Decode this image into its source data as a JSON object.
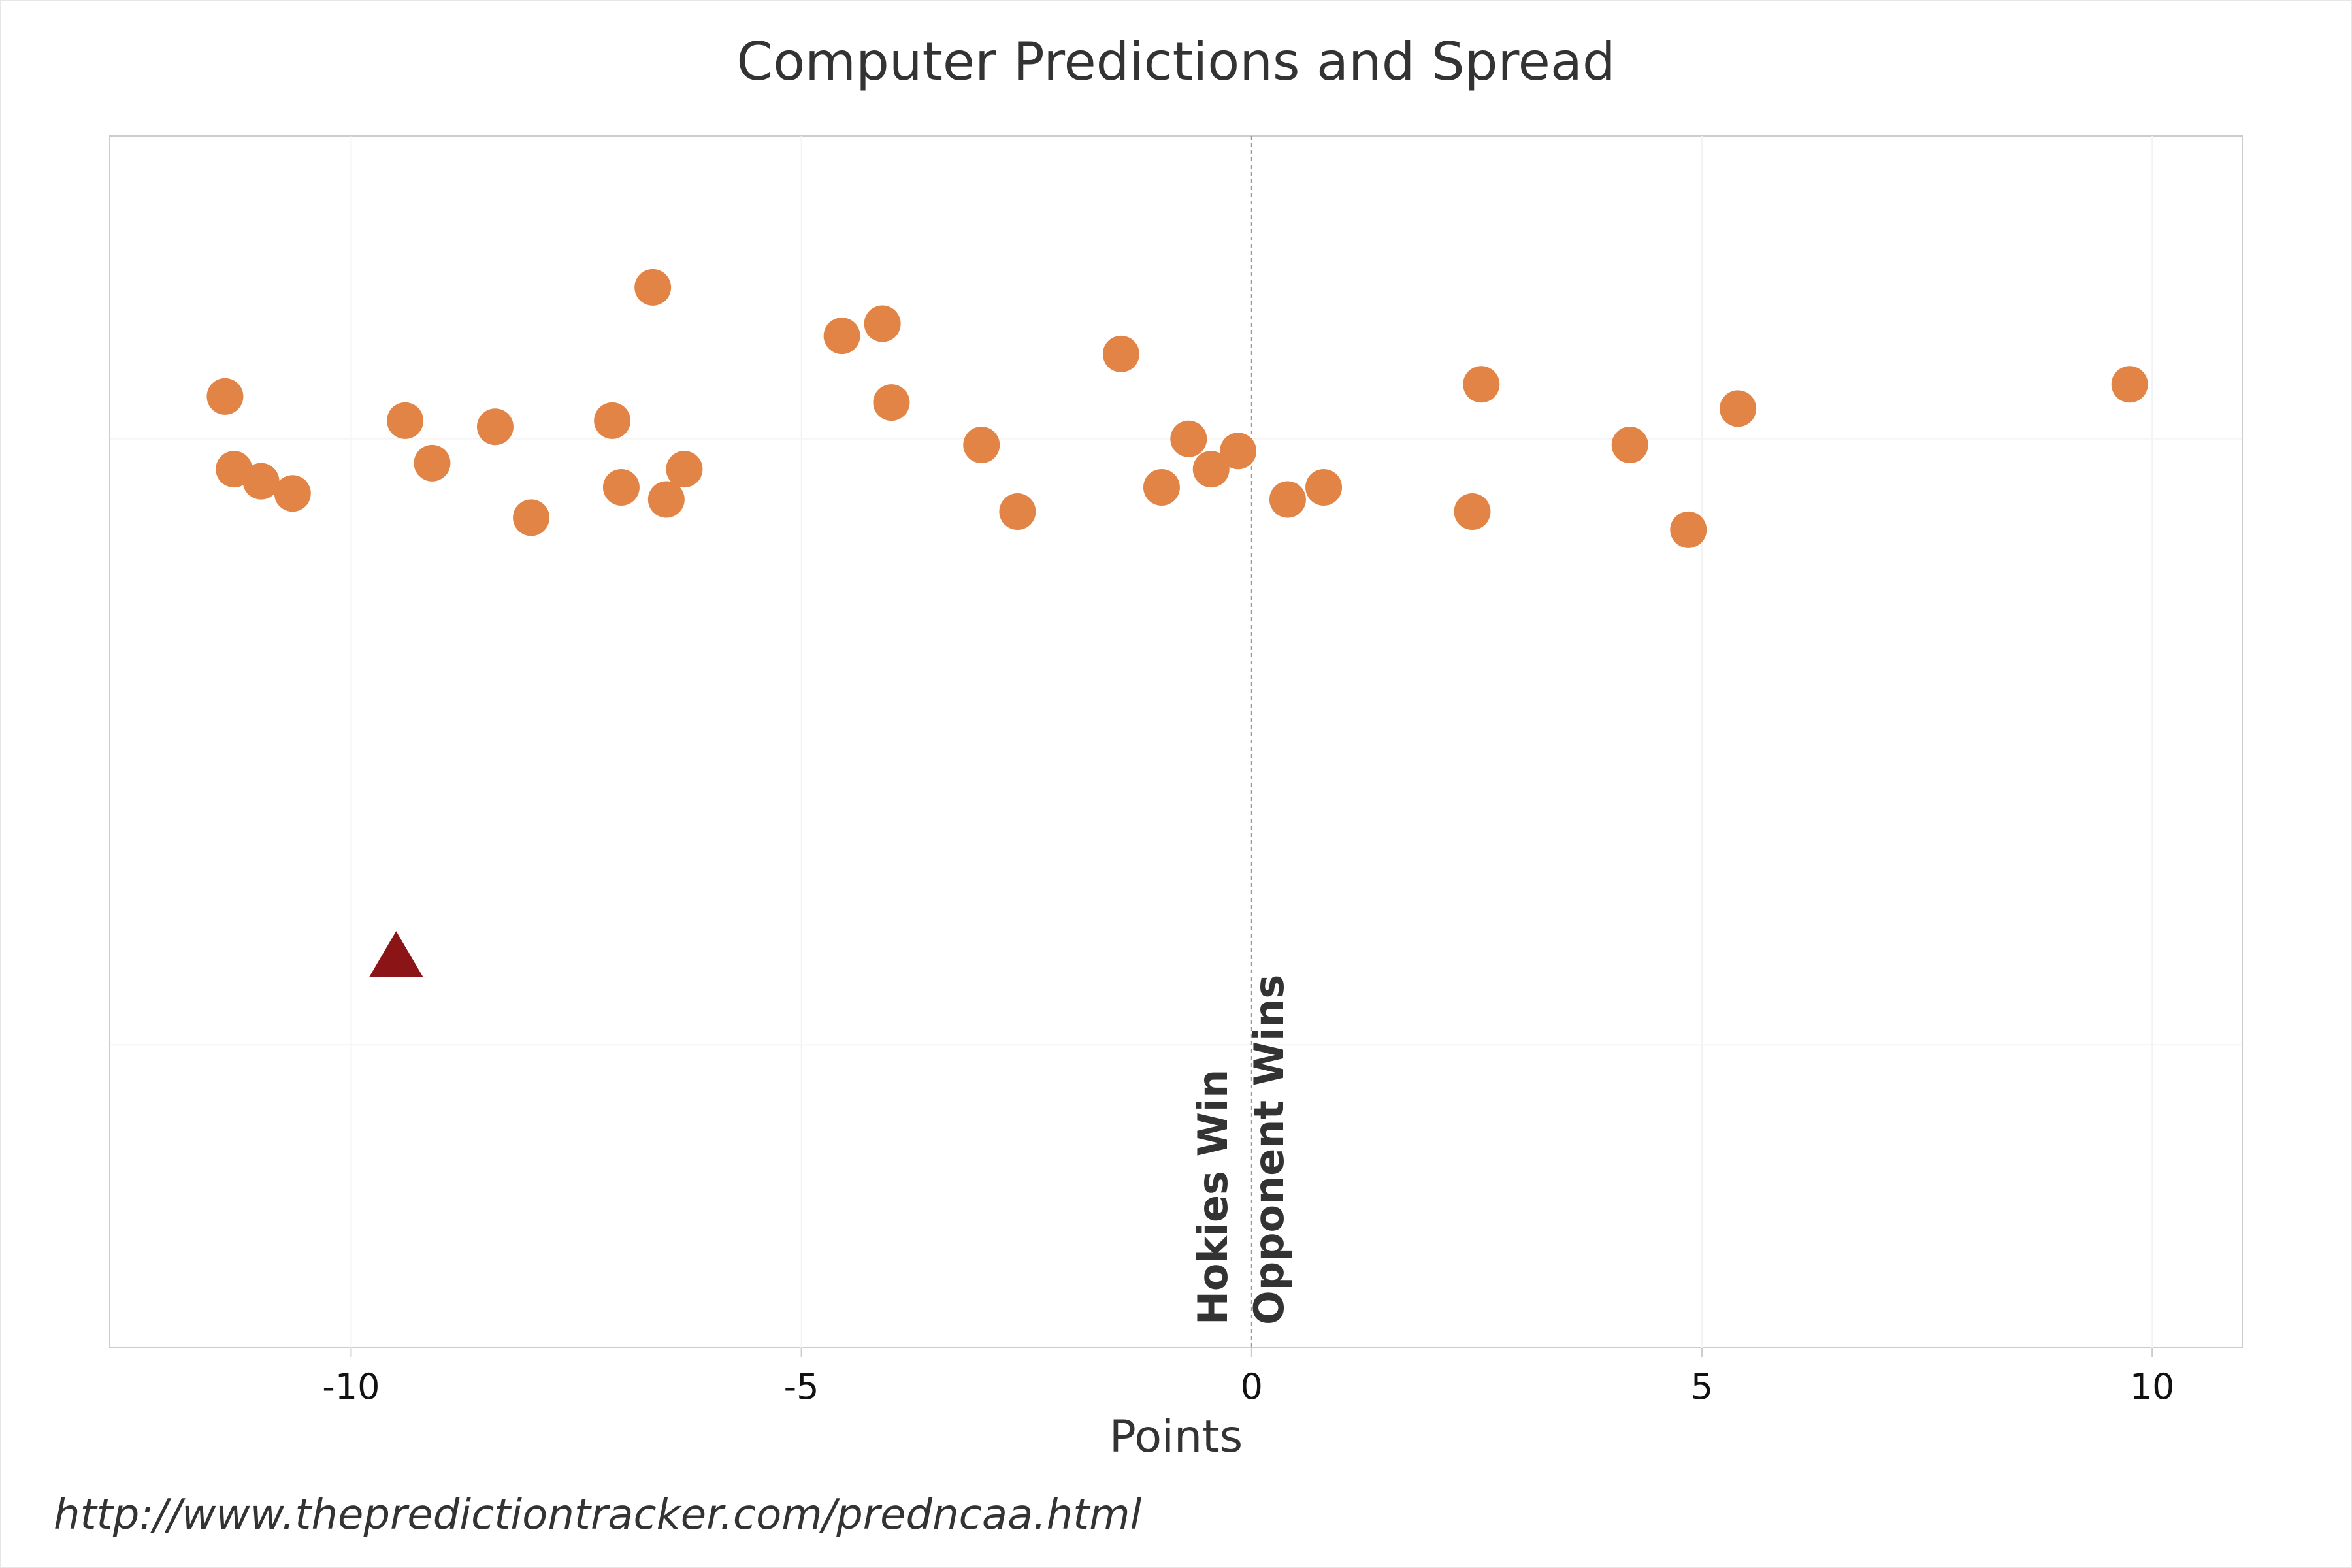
{
  "chart_data": {
    "type": "scatter",
    "title": "Computer Predictions and Spread",
    "xlabel": "Points",
    "ylabel": "",
    "xlim": [
      -12.68,
      11.0
    ],
    "x_ticks": [
      -10,
      -5,
      0,
      5,
      10
    ],
    "x_tick_labels": [
      "-10",
      "-5",
      "0",
      "5",
      "10"
    ],
    "grid": true,
    "reference_line": {
      "x": 0,
      "style": "dashed"
    },
    "annotations": [
      {
        "text": "Hokies Win",
        "x": 0,
        "side": "left",
        "rotation": -90
      },
      {
        "text": "Opponent Wins",
        "x": 0,
        "side": "right",
        "rotation": -90
      }
    ],
    "series": [
      {
        "marker": "circle",
        "color": "#e38447",
        "points": [
          {
            "x": -11.4,
            "y": 0.07
          },
          {
            "x": -11.3,
            "y": -0.05
          },
          {
            "x": -11.0,
            "y": -0.07
          },
          {
            "x": -10.65,
            "y": -0.09
          },
          {
            "x": -9.4,
            "y": 0.03
          },
          {
            "x": -9.1,
            "y": -0.04
          },
          {
            "x": -8.4,
            "y": 0.02
          },
          {
            "x": -8.0,
            "y": -0.13
          },
          {
            "x": -7.1,
            "y": 0.03
          },
          {
            "x": -7.0,
            "y": -0.08
          },
          {
            "x": -6.65,
            "y": 0.25
          },
          {
            "x": -6.5,
            "y": -0.1
          },
          {
            "x": -6.3,
            "y": -0.05
          },
          {
            "x": -4.55,
            "y": 0.17
          },
          {
            "x": -4.1,
            "y": 0.19
          },
          {
            "x": -4.0,
            "y": 0.06
          },
          {
            "x": -3.0,
            "y": -0.01
          },
          {
            "x": -2.6,
            "y": -0.12
          },
          {
            "x": -1.45,
            "y": 0.14
          },
          {
            "x": -1.0,
            "y": -0.08
          },
          {
            "x": -0.7,
            "y": 0.0
          },
          {
            "x": -0.45,
            "y": -0.05
          },
          {
            "x": -0.15,
            "y": -0.02
          },
          {
            "x": 0.4,
            "y": -0.1
          },
          {
            "x": 0.8,
            "y": -0.08
          },
          {
            "x": 2.45,
            "y": -0.12
          },
          {
            "x": 2.55,
            "y": 0.09
          },
          {
            "x": 4.2,
            "y": -0.01
          },
          {
            "x": 4.85,
            "y": -0.15
          },
          {
            "x": 5.4,
            "y": 0.05
          },
          {
            "x": 9.75,
            "y": 0.09
          }
        ]
      },
      {
        "marker": "triangle",
        "color": "#8b1516",
        "points": [
          {
            "x": -9.5,
            "y": -0.85
          }
        ]
      }
    ]
  },
  "footer": {
    "source_url": "http://www.thepredictiontracker.com/predncaa.html"
  }
}
